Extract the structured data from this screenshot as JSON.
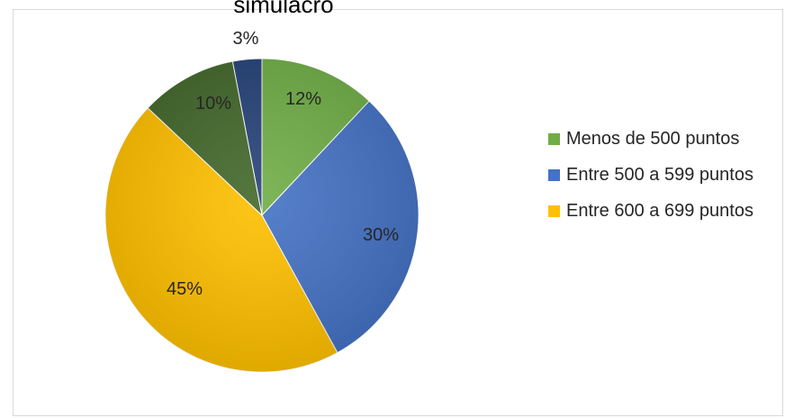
{
  "chart_data": {
    "type": "pie",
    "title": "simulacro",
    "categories": [
      "Menos de 500 puntos",
      "Entre 500 a 599 puntos",
      "Entre 600 a 699 puntos",
      "",
      ""
    ],
    "values": [
      12,
      30,
      45,
      10,
      3
    ],
    "labels": [
      "12%",
      "30%",
      "45%",
      "10%",
      "3%"
    ],
    "colors": [
      "#70ad47",
      "#4472c4",
      "#ffc000",
      "#43682b",
      "#264478"
    ],
    "start_angle_deg": 0,
    "direction": "clockwise",
    "legend_position": "right"
  }
}
